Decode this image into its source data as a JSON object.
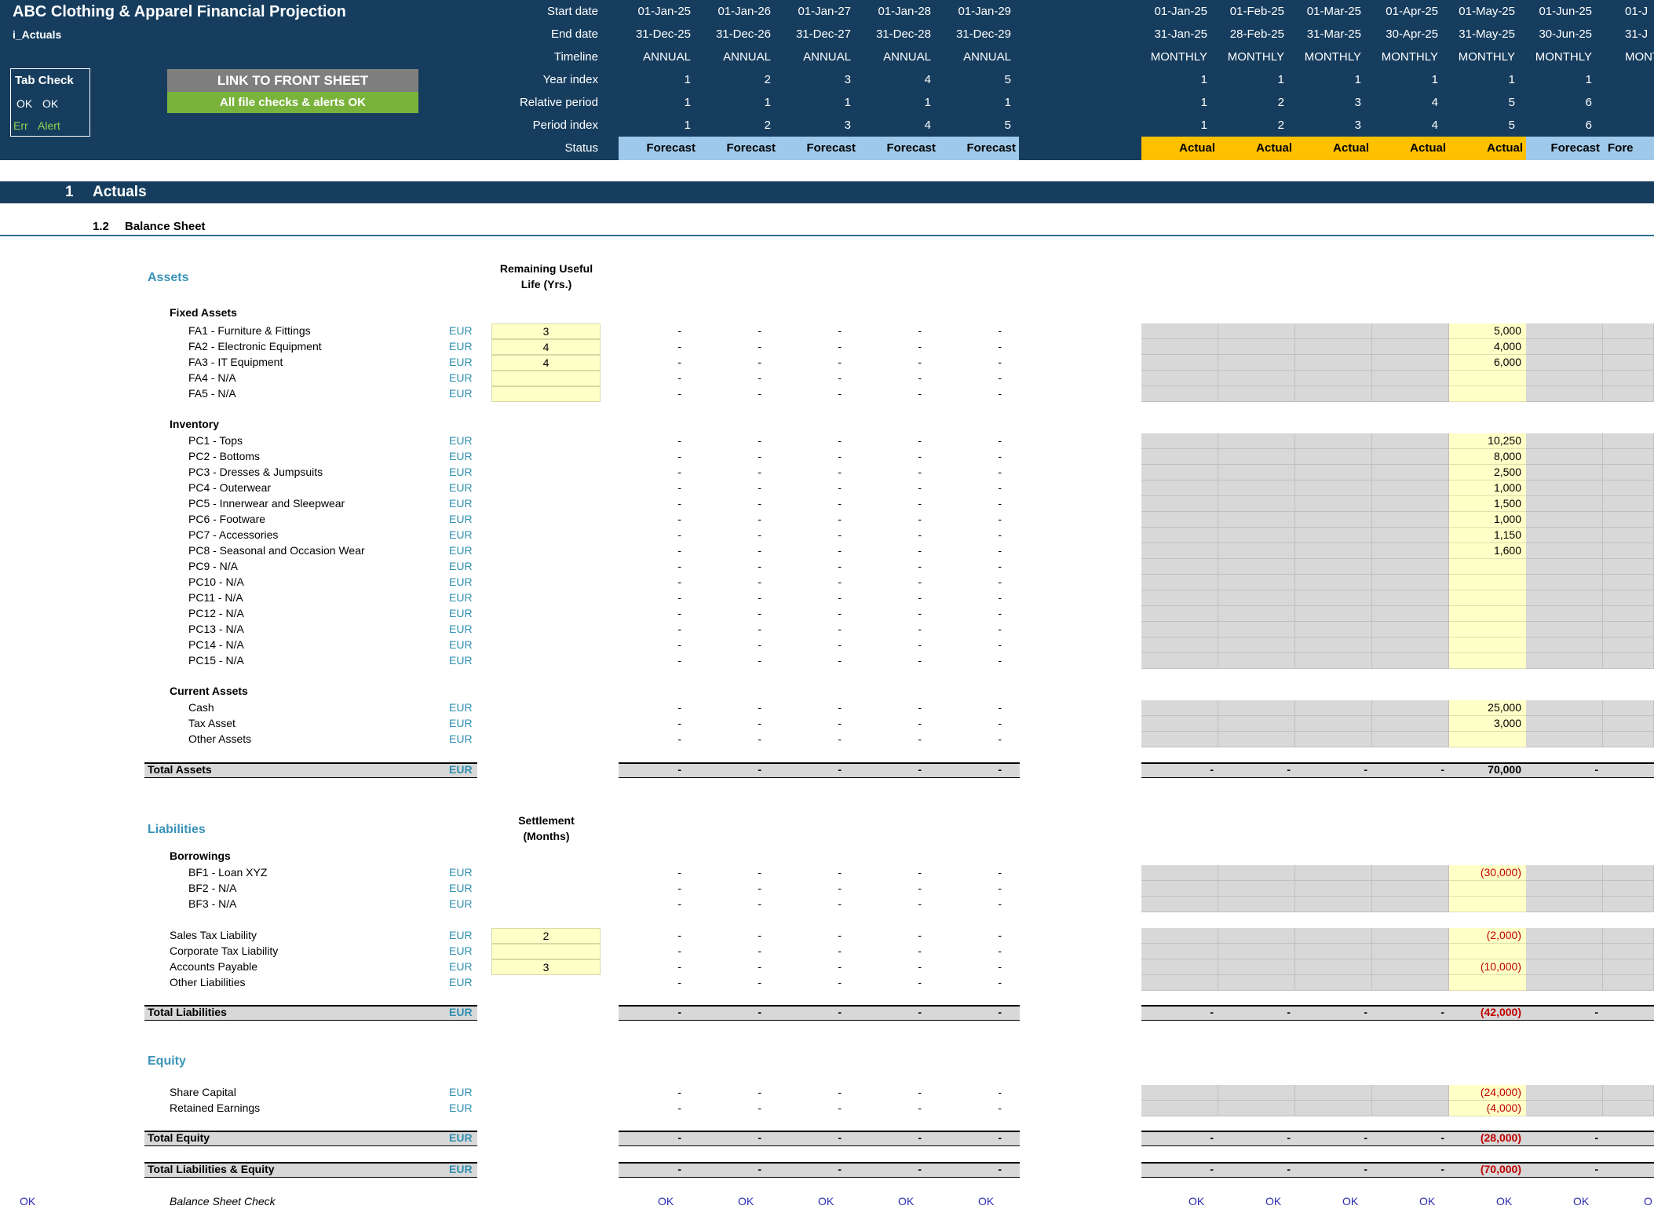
{
  "header": {
    "title": "ABC Clothing & Apparel Financial Projection",
    "sheet": "i_Actuals",
    "tab_check": {
      "title": "Tab Check",
      "ok1": "OK",
      "ok2": "OK",
      "err": "Err",
      "alert": "Alert"
    },
    "link_button": "LINK TO FRONT SHEET",
    "checks_status": "All file checks & alerts OK",
    "row_labels": [
      "Start date",
      "End date",
      "Timeline",
      "Year index",
      "Relative period",
      "Period index",
      "Status"
    ],
    "annual": [
      {
        "start": "01-Jan-25",
        "end": "31-Dec-25",
        "timeline": "ANNUAL",
        "year": "1",
        "rel": "1",
        "period": "1",
        "status": "Forecast"
      },
      {
        "start": "01-Jan-26",
        "end": "31-Dec-26",
        "timeline": "ANNUAL",
        "year": "2",
        "rel": "1",
        "period": "2",
        "status": "Forecast"
      },
      {
        "start": "01-Jan-27",
        "end": "31-Dec-27",
        "timeline": "ANNUAL",
        "year": "3",
        "rel": "1",
        "period": "3",
        "status": "Forecast"
      },
      {
        "start": "01-Jan-28",
        "end": "31-Dec-28",
        "timeline": "ANNUAL",
        "year": "4",
        "rel": "1",
        "period": "4",
        "status": "Forecast"
      },
      {
        "start": "01-Jan-29",
        "end": "31-Dec-29",
        "timeline": "ANNUAL",
        "year": "5",
        "rel": "1",
        "period": "5",
        "status": "Forecast"
      }
    ],
    "monthly": [
      {
        "start": "01-Jan-25",
        "end": "31-Jan-25",
        "timeline": "MONTHLY",
        "year": "1",
        "rel": "1",
        "period": "1",
        "status": "Actual"
      },
      {
        "start": "01-Feb-25",
        "end": "28-Feb-25",
        "timeline": "MONTHLY",
        "year": "1",
        "rel": "2",
        "period": "2",
        "status": "Actual"
      },
      {
        "start": "01-Mar-25",
        "end": "31-Mar-25",
        "timeline": "MONTHLY",
        "year": "1",
        "rel": "3",
        "period": "3",
        "status": "Actual"
      },
      {
        "start": "01-Apr-25",
        "end": "30-Apr-25",
        "timeline": "MONTHLY",
        "year": "1",
        "rel": "4",
        "period": "4",
        "status": "Actual"
      },
      {
        "start": "01-May-25",
        "end": "31-May-25",
        "timeline": "MONTHLY",
        "year": "1",
        "rel": "5",
        "period": "5",
        "status": "Actual"
      },
      {
        "start": "01-Jun-25",
        "end": "30-Jun-25",
        "timeline": "MONTHLY",
        "year": "1",
        "rel": "6",
        "period": "6",
        "status": "Forecast"
      },
      {
        "start": "01-J",
        "end": "31-J",
        "timeline": "MONT",
        "year": "",
        "rel": "",
        "period": "",
        "status": "Fore"
      }
    ]
  },
  "section": {
    "number": "1",
    "title": "Actuals",
    "sub_number": "1.2",
    "sub_title": "Balance Sheet"
  },
  "assets": {
    "heading": "Assets",
    "col_header_1": "Remaining Useful",
    "col_header_2": "Life (Yrs.)",
    "fixed_heading": "Fixed Assets",
    "fixed": [
      {
        "label": "FA1 - Furniture & Fittings",
        "unit": "EUR",
        "input": "3",
        "may": "5,000"
      },
      {
        "label": "FA2 - Electronic Equipment",
        "unit": "EUR",
        "input": "4",
        "may": "4,000"
      },
      {
        "label": "FA3 - IT Equipment",
        "unit": "EUR",
        "input": "4",
        "may": "6,000"
      },
      {
        "label": "FA4 - N/A",
        "unit": "EUR",
        "input": "",
        "may": ""
      },
      {
        "label": "FA5 - N/A",
        "unit": "EUR",
        "input": "",
        "may": ""
      }
    ],
    "inventory_heading": "Inventory",
    "inventory": [
      {
        "label": "PC1 - Tops",
        "unit": "EUR",
        "may": "10,250"
      },
      {
        "label": "PC2 - Bottoms",
        "unit": "EUR",
        "may": "8,000"
      },
      {
        "label": "PC3 - Dresses & Jumpsuits",
        "unit": "EUR",
        "may": "2,500"
      },
      {
        "label": "PC4 - Outerwear",
        "unit": "EUR",
        "may": "1,000"
      },
      {
        "label": "PC5 - Innerwear and Sleepwear",
        "unit": "EUR",
        "may": "1,500"
      },
      {
        "label": "PC6 - Footware",
        "unit": "EUR",
        "may": "1,000"
      },
      {
        "label": "PC7 - Accessories",
        "unit": "EUR",
        "may": "1,150"
      },
      {
        "label": "PC8 - Seasonal and Occasion Wear",
        "unit": "EUR",
        "may": "1,600"
      },
      {
        "label": "PC9 - N/A",
        "unit": "EUR",
        "may": ""
      },
      {
        "label": "PC10 - N/A",
        "unit": "EUR",
        "may": ""
      },
      {
        "label": "PC11 - N/A",
        "unit": "EUR",
        "may": ""
      },
      {
        "label": "PC12 - N/A",
        "unit": "EUR",
        "may": ""
      },
      {
        "label": "PC13 - N/A",
        "unit": "EUR",
        "may": ""
      },
      {
        "label": "PC14 - N/A",
        "unit": "EUR",
        "may": ""
      },
      {
        "label": "PC15 - N/A",
        "unit": "EUR",
        "may": ""
      }
    ],
    "current_heading": "Current Assets",
    "current": [
      {
        "label": "Cash",
        "unit": "EUR",
        "may": "25,000"
      },
      {
        "label": "Tax Asset",
        "unit": "EUR",
        "may": "3,000"
      },
      {
        "label": "Other Assets",
        "unit": "EUR",
        "may": ""
      }
    ],
    "total": {
      "label": "Total Assets",
      "unit": "EUR",
      "may": "70,000"
    }
  },
  "liabilities": {
    "heading": "Liabilities",
    "col_header_1": "Settlement",
    "col_header_2": "(Months)",
    "borrowings_heading": "Borrowings",
    "borrowings": [
      {
        "label": "BF1 - Loan XYZ",
        "unit": "EUR",
        "may": "(30,000)"
      },
      {
        "label": "BF2 - N/A",
        "unit": "EUR",
        "may": ""
      },
      {
        "label": "BF3 - N/A",
        "unit": "EUR",
        "may": ""
      }
    ],
    "other": [
      {
        "label": "Sales Tax Liability",
        "unit": "EUR",
        "input": "2",
        "may": "(2,000)"
      },
      {
        "label": "Corporate Tax Liability",
        "unit": "EUR",
        "input": "",
        "may": ""
      },
      {
        "label": "Accounts Payable",
        "unit": "EUR",
        "input": "3",
        "may": "(10,000)"
      },
      {
        "label": "Other Liabilities",
        "unit": "EUR",
        "may": ""
      }
    ],
    "total": {
      "label": "Total Liabilities",
      "unit": "EUR",
      "may": "(42,000)"
    }
  },
  "equity": {
    "heading": "Equity",
    "items": [
      {
        "label": "Share Capital",
        "unit": "EUR",
        "may": "(24,000)"
      },
      {
        "label": "Retained Earnings",
        "unit": "EUR",
        "may": "(4,000)"
      }
    ],
    "total": {
      "label": "Total Equity",
      "unit": "EUR",
      "may": "(28,000)"
    },
    "total_le": {
      "label": "Total Liabilities & Equity",
      "unit": "EUR",
      "may": "(70,000)"
    }
  },
  "check": {
    "left": "OK",
    "label": "Balance Sheet Check",
    "value": "OK",
    "partial": "O"
  },
  "dash": "-"
}
